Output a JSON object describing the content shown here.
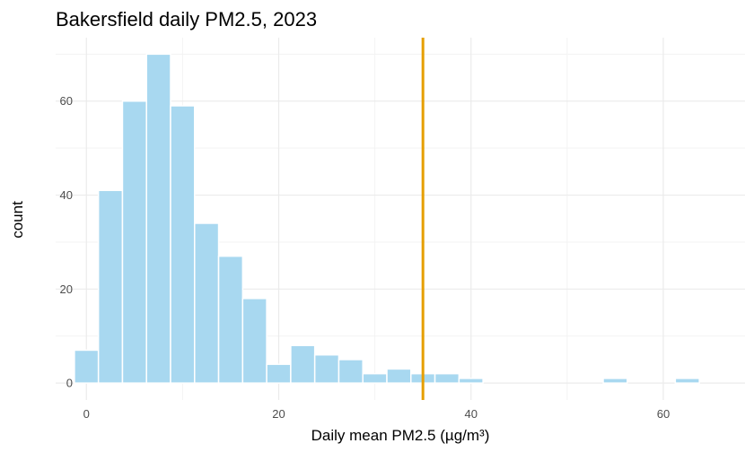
{
  "chart_data": {
    "type": "bar",
    "title": "Bakersfield daily PM2.5, 2023",
    "xlabel": "Daily mean PM2.5 (µg/m³)",
    "ylabel": "count",
    "bin_width": 2.5,
    "bins": [
      {
        "x0": -1.25,
        "x1": 1.25,
        "count": 7
      },
      {
        "x0": 1.25,
        "x1": 3.75,
        "count": 41
      },
      {
        "x0": 3.75,
        "x1": 6.25,
        "count": 60
      },
      {
        "x0": 6.25,
        "x1": 8.75,
        "count": 70
      },
      {
        "x0": 8.75,
        "x1": 11.25,
        "count": 59
      },
      {
        "x0": 11.25,
        "x1": 13.75,
        "count": 34
      },
      {
        "x0": 13.75,
        "x1": 16.25,
        "count": 27
      },
      {
        "x0": 16.25,
        "x1": 18.75,
        "count": 18
      },
      {
        "x0": 18.75,
        "x1": 21.25,
        "count": 4
      },
      {
        "x0": 21.25,
        "x1": 23.75,
        "count": 8
      },
      {
        "x0": 23.75,
        "x1": 26.25,
        "count": 6
      },
      {
        "x0": 26.25,
        "x1": 28.75,
        "count": 5
      },
      {
        "x0": 28.75,
        "x1": 31.25,
        "count": 2
      },
      {
        "x0": 31.25,
        "x1": 33.75,
        "count": 3
      },
      {
        "x0": 33.75,
        "x1": 36.25,
        "count": 2
      },
      {
        "x0": 36.25,
        "x1": 38.75,
        "count": 2
      },
      {
        "x0": 38.75,
        "x1": 41.25,
        "count": 1
      },
      {
        "x0": 41.25,
        "x1": 43.75,
        "count": 0
      },
      {
        "x0": 43.75,
        "x1": 46.25,
        "count": 0
      },
      {
        "x0": 46.25,
        "x1": 48.75,
        "count": 0
      },
      {
        "x0": 48.75,
        "x1": 51.25,
        "count": 0
      },
      {
        "x0": 51.25,
        "x1": 53.75,
        "count": 0
      },
      {
        "x0": 53.75,
        "x1": 56.25,
        "count": 1
      },
      {
        "x0": 56.25,
        "x1": 58.75,
        "count": 0
      },
      {
        "x0": 58.75,
        "x1": 61.25,
        "count": 0
      },
      {
        "x0": 61.25,
        "x1": 63.75,
        "count": 1
      }
    ],
    "xlim": [
      -3.2,
      68.5
    ],
    "ylim": [
      -3.6,
      73.5
    ],
    "x_ticks": [
      0,
      20,
      40,
      60
    ],
    "y_ticks": [
      0,
      20,
      40,
      60
    ],
    "reference_line": {
      "x": 35,
      "color": "#e69f00"
    },
    "bar_color": "#a8d8f0",
    "bar_outline": "#ffffff",
    "grid": true
  }
}
